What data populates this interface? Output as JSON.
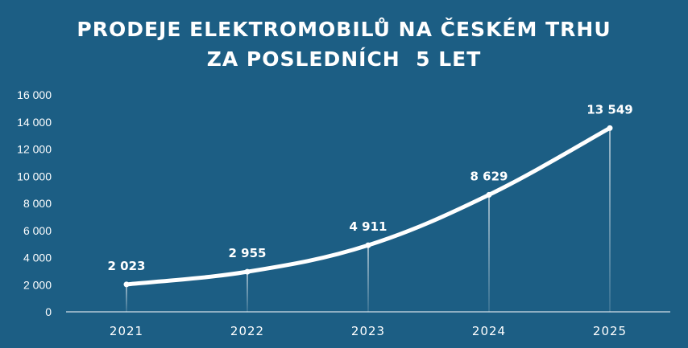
{
  "title": {
    "line1": "PRODEJE ELEKTROMOBILŮ NA ČESKÉM TRHU",
    "line2": "ZA POSLEDNÍCH  5 LET"
  },
  "colors": {
    "background": "#1c5e84",
    "line": "#ffffff",
    "text": "#ffffff"
  },
  "chart_data": {
    "type": "line",
    "title": "PRODEJE ELEKTROMOBILŮ NA ČESKÉM TRHU ZA POSLEDNÍCH  5 LET",
    "categories": [
      "2021",
      "2022",
      "2023",
      "2024",
      "2025"
    ],
    "values": [
      2023,
      2955,
      4911,
      8629,
      13549
    ],
    "data_labels": [
      "2 023",
      "2 955",
      "4 911",
      "8 629",
      "13 549"
    ],
    "yticks": [
      0,
      2000,
      4000,
      6000,
      8000,
      10000,
      12000,
      14000,
      16000
    ],
    "ytick_labels": [
      "0",
      "2 000",
      "4 000",
      "6 000",
      "8 000",
      "10 000",
      "12 000",
      "14 000",
      "16 000"
    ],
    "ylim": [
      0,
      16000
    ],
    "xlabel": "",
    "ylabel": "",
    "grid": false,
    "legend": "none"
  }
}
